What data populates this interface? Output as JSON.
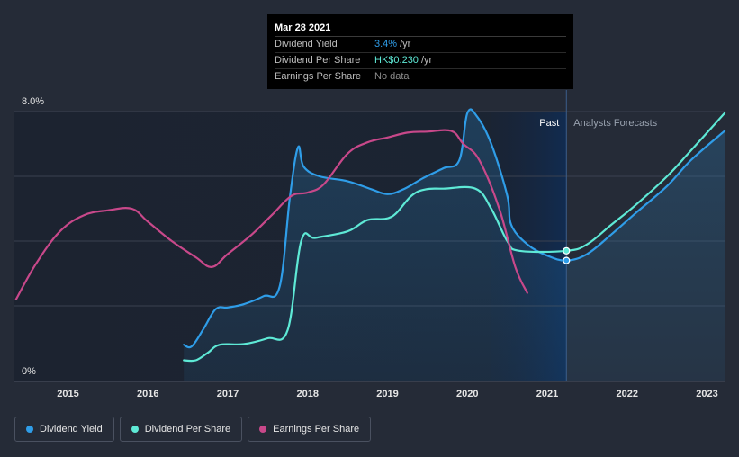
{
  "tooltip": {
    "date": "Mar 28 2021",
    "rows": [
      {
        "label": "Dividend Yield",
        "value": "3.4%",
        "unit": "/yr",
        "color": "#2f9de8"
      },
      {
        "label": "Dividend Per Share",
        "value": "HK$0.230",
        "unit": "/yr",
        "color": "#5ee9d6"
      },
      {
        "label": "Earnings Per Share",
        "value": "No data",
        "unit": "",
        "color": "#8c8c8c"
      }
    ]
  },
  "regions": {
    "past": "Past",
    "forecast": "Analysts Forecasts"
  },
  "legend": [
    {
      "label": "Dividend Yield",
      "color": "#2f9de8"
    },
    {
      "label": "Dividend Per Share",
      "color": "#5ee9d6"
    },
    {
      "label": "Earnings Per Share",
      "color": "#c8488a"
    }
  ],
  "chart_data": {
    "type": "line",
    "y_tick_labels": [
      "8.0%",
      "0%"
    ],
    "ylim": [
      0,
      8
    ],
    "xlim": [
      2014.33,
      2023.22
    ],
    "x_tick_labels": [
      "2015",
      "2016",
      "2017",
      "2018",
      "2019",
      "2020",
      "2021",
      "2022",
      "2023"
    ],
    "x_ticks": [
      2015,
      2016,
      2017,
      2018,
      2019,
      2020,
      2021,
      2022,
      2023
    ],
    "grid": true,
    "highlight_date": 2021.24,
    "series": [
      {
        "name": "Dividend Yield",
        "color": "#2f9de8",
        "fill": true,
        "points": [
          [
            2016.45,
            0.8
          ],
          [
            2016.55,
            0.75
          ],
          [
            2016.7,
            1.3
          ],
          [
            2016.85,
            1.9
          ],
          [
            2017.0,
            1.95
          ],
          [
            2017.2,
            2.05
          ],
          [
            2017.45,
            2.3
          ],
          [
            2017.65,
            2.6
          ],
          [
            2017.78,
            5.4
          ],
          [
            2017.88,
            6.9
          ],
          [
            2017.95,
            6.3
          ],
          [
            2018.15,
            6.0
          ],
          [
            2018.5,
            5.85
          ],
          [
            2018.8,
            5.6
          ],
          [
            2019.0,
            5.45
          ],
          [
            2019.2,
            5.6
          ],
          [
            2019.45,
            5.95
          ],
          [
            2019.7,
            6.25
          ],
          [
            2019.9,
            6.5
          ],
          [
            2020.0,
            7.95
          ],
          [
            2020.12,
            7.85
          ],
          [
            2020.3,
            7.0
          ],
          [
            2020.5,
            5.4
          ],
          [
            2020.55,
            4.5
          ],
          [
            2020.75,
            3.9
          ],
          [
            2021.0,
            3.55
          ],
          [
            2021.24,
            3.4
          ],
          [
            2021.5,
            3.6
          ],
          [
            2021.8,
            4.2
          ],
          [
            2022.1,
            4.85
          ],
          [
            2022.5,
            5.7
          ],
          [
            2022.8,
            6.5
          ],
          [
            2023.22,
            7.4
          ]
        ]
      },
      {
        "name": "Dividend Per Share",
        "color": "#5ee9d6",
        "fill": false,
        "points": [
          [
            2016.45,
            0.32
          ],
          [
            2016.6,
            0.32
          ],
          [
            2016.75,
            0.55
          ],
          [
            2016.9,
            0.8
          ],
          [
            2017.2,
            0.82
          ],
          [
            2017.5,
            1.0
          ],
          [
            2017.75,
            1.25
          ],
          [
            2017.92,
            4.0
          ],
          [
            2018.1,
            4.1
          ],
          [
            2018.5,
            4.3
          ],
          [
            2018.75,
            4.65
          ],
          [
            2019.05,
            4.75
          ],
          [
            2019.3,
            5.4
          ],
          [
            2019.48,
            5.6
          ],
          [
            2019.7,
            5.62
          ],
          [
            2020.1,
            5.62
          ],
          [
            2020.3,
            5.0
          ],
          [
            2020.5,
            4.0
          ],
          [
            2020.65,
            3.7
          ],
          [
            2021.24,
            3.7
          ],
          [
            2021.5,
            3.9
          ],
          [
            2021.8,
            4.5
          ],
          [
            2022.1,
            5.1
          ],
          [
            2022.5,
            6.0
          ],
          [
            2022.8,
            6.8
          ],
          [
            2023.22,
            7.95
          ]
        ]
      },
      {
        "name": "Earnings Per Share",
        "color": "#c8488a",
        "fill": false,
        "points": [
          [
            2014.35,
            2.2
          ],
          [
            2014.6,
            3.3
          ],
          [
            2014.9,
            4.3
          ],
          [
            2015.2,
            4.8
          ],
          [
            2015.5,
            4.95
          ],
          [
            2015.8,
            5.0
          ],
          [
            2016.0,
            4.6
          ],
          [
            2016.3,
            4.0
          ],
          [
            2016.6,
            3.5
          ],
          [
            2016.8,
            3.2
          ],
          [
            2017.0,
            3.6
          ],
          [
            2017.3,
            4.2
          ],
          [
            2017.55,
            4.8
          ],
          [
            2017.8,
            5.4
          ],
          [
            2018.0,
            5.5
          ],
          [
            2018.2,
            5.75
          ],
          [
            2018.5,
            6.7
          ],
          [
            2018.75,
            7.05
          ],
          [
            2019.0,
            7.2
          ],
          [
            2019.25,
            7.35
          ],
          [
            2019.5,
            7.38
          ],
          [
            2019.8,
            7.4
          ],
          [
            2019.95,
            7.0
          ],
          [
            2020.15,
            6.5
          ],
          [
            2020.4,
            5.0
          ],
          [
            2020.6,
            3.2
          ],
          [
            2020.75,
            2.4
          ]
        ]
      }
    ],
    "markers": [
      {
        "series": "Dividend Per Share",
        "x": 2021.24,
        "y": 3.7
      },
      {
        "series": "Dividend Yield",
        "x": 2021.24,
        "y": 3.4
      }
    ]
  }
}
